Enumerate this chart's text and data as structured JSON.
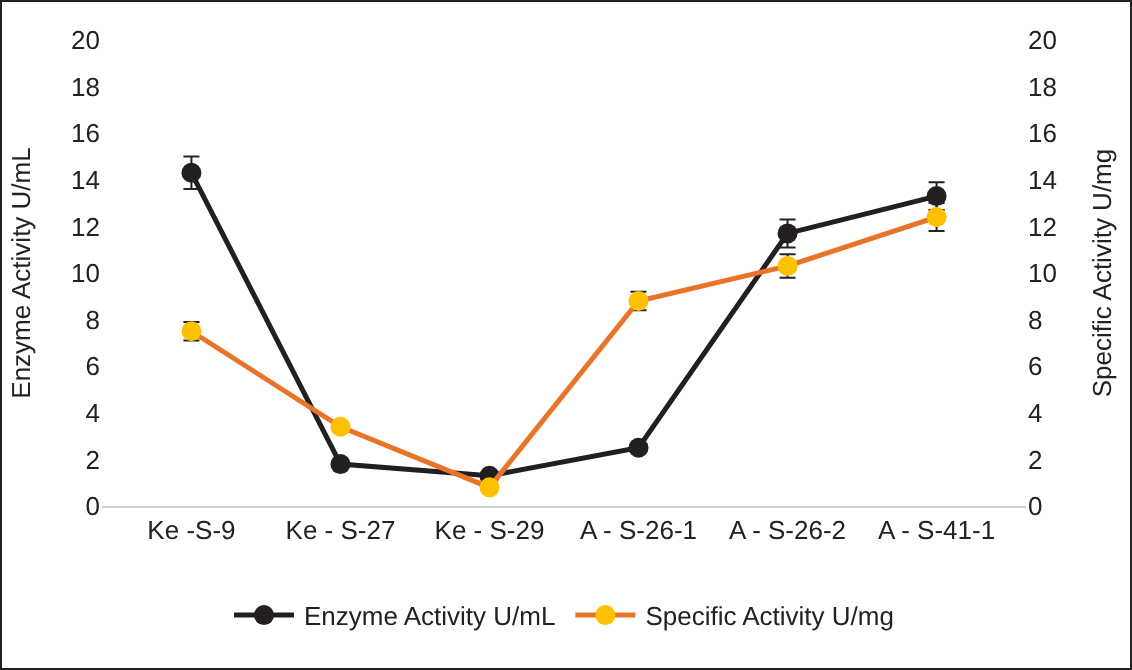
{
  "chart_data": {
    "type": "line",
    "ylabel": "Enzyme Activity U/mL",
    "y2label": "Specific Activity U/mg",
    "categories": [
      "Ke -S-9",
      "Ke - S-27",
      "Ke - S-29",
      "A - S-26-1",
      "A - S-26-2",
      "A - S-41-1"
    ],
    "series": [
      {
        "name": "Enzyme Activity U/mL",
        "color": "#231f20",
        "values": [
          14.3,
          1.8,
          1.3,
          2.5,
          11.7,
          13.3
        ],
        "errors": [
          0.7,
          null,
          null,
          null,
          0.6,
          0.6
        ]
      },
      {
        "name": "Specific Activity U/mg",
        "color": "#e8742a",
        "colors": [
          "#ffc000",
          "#ffc000",
          "#ffc000",
          "#ffc000",
          "#ffc000",
          "#ffc000"
        ],
        "axis": "y2",
        "values": [
          7.5,
          3.4,
          0.8,
          8.8,
          10.3,
          12.4
        ],
        "errors": [
          0.4,
          null,
          null,
          0.4,
          0.5,
          0.6
        ]
      }
    ],
    "ylim": [
      0,
      20
    ],
    "yticks": [
      0,
      2,
      4,
      6,
      8,
      10,
      12,
      14,
      16,
      18,
      20
    ],
    "y2lim": [
      0,
      20
    ],
    "y2ticks": [
      0,
      2,
      4,
      6,
      8,
      10,
      12,
      14,
      16,
      18,
      20
    ],
    "grid": false,
    "legend": "bottom",
    "marker": "circle",
    "line_style": "solid"
  }
}
